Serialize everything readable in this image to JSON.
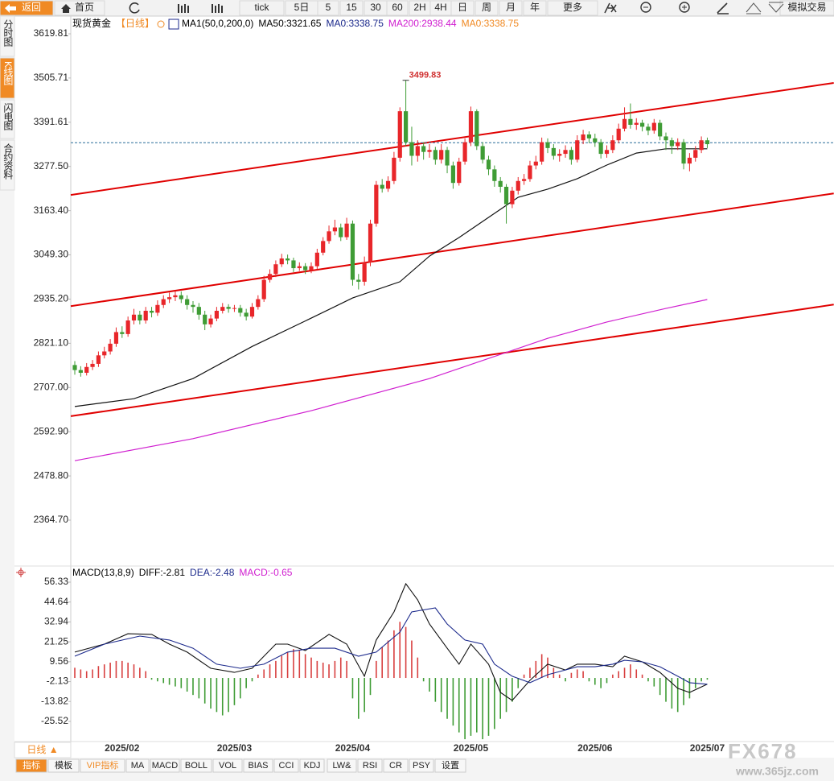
{
  "ui": {
    "toolbar": [
      "返回",
      "首页",
      "tick",
      "5日",
      "5",
      "15",
      "30",
      "60",
      "2H",
      "4H",
      "日",
      "周",
      "月",
      "年",
      "更多",
      "模拟交易"
    ],
    "side_tabs": [
      "分时图",
      "K线图",
      "闪电图",
      "合约资料"
    ],
    "period_button": "日线 ▲",
    "bottom_tabs": [
      "指标",
      "模板",
      "VIP指标",
      "MA",
      "MACD",
      "BOLL",
      "VOL",
      "BIAS",
      "CCI",
      "KDJ",
      "LW&",
      "RSI",
      "CR",
      "PSY",
      "设置"
    ],
    "watermark": [
      "FX678",
      "www.365jz.com"
    ]
  },
  "chart_data": {
    "type": "candlestick",
    "legend_items": [
      {
        "text": "现货黄金",
        "color": "#000000"
      },
      {
        "text": "【日线】",
        "color": "#f08a24"
      },
      {
        "text": "MA1(50,0,200,0)",
        "color": "#000000"
      },
      {
        "text": "MA50:3321.65",
        "color": "#000000"
      },
      {
        "text": "MA0:3338.75",
        "color": "#1c2a8c"
      },
      {
        "text": "MA200:2938.44",
        "color": "#d020d0"
      },
      {
        "text": "MA0:3338.75",
        "color": "#f08a24"
      }
    ],
    "categories": [
      null,
      null,
      null,
      null,
      null,
      null,
      null,
      null,
      "2025/02",
      null,
      null,
      null,
      null,
      null,
      null,
      null,
      null,
      null,
      null,
      null,
      null,
      null,
      null,
      null,
      null,
      null,
      null,
      "2025/03",
      null,
      null,
      null,
      null,
      null,
      null,
      null,
      null,
      null,
      null,
      null,
      null,
      null,
      null,
      null,
      null,
      null,
      null,
      null,
      "2025/04",
      null,
      null,
      null,
      null,
      null,
      null,
      null,
      null,
      null,
      null,
      null,
      null,
      null,
      null,
      null,
      null,
      null,
      null,
      null,
      "2025/05",
      null,
      null,
      null,
      null,
      null,
      null,
      null,
      null,
      null,
      null,
      null,
      null,
      null,
      null,
      null,
      null,
      null,
      null,
      null,
      null,
      "2025/06",
      null,
      null,
      null,
      null,
      null,
      null,
      null,
      null,
      null,
      null,
      null,
      null,
      null,
      null,
      null,
      null,
      null,
      null,
      "2025/07"
    ],
    "open": [
      2765,
      2752,
      2745,
      2760,
      2768,
      2790,
      2800,
      2820,
      2850,
      2845,
      2880,
      2895,
      2880,
      2905,
      2900,
      2920,
      2935,
      2940,
      2945,
      2935,
      2920,
      2915,
      2895,
      2870,
      2885,
      2905,
      2915,
      2910,
      2912,
      2900,
      2890,
      2915,
      2935,
      2985,
      3000,
      3025,
      3040,
      3035,
      3015,
      3020,
      3010,
      3020,
      3055,
      3085,
      3110,
      3120,
      3095,
      3130,
      2985,
      2980,
      3030,
      3130,
      3230,
      3220,
      3240,
      3300,
      3420,
      3340,
      3305,
      3330,
      3315,
      3320,
      3295,
      3320,
      3280,
      3235,
      3290,
      3340,
      3420,
      3330,
      3295,
      3270,
      3240,
      3225,
      3180,
      3215,
      3240,
      3245,
      3280,
      3290,
      3340,
      3325,
      3305,
      3310,
      3320,
      3295,
      3345,
      3360,
      3350,
      3340,
      3310,
      3320,
      3345,
      3375,
      3400,
      3385,
      3390,
      3380,
      3370,
      3390,
      3355,
      3345,
      3330,
      3340,
      3285,
      3300,
      3320,
      3345
    ],
    "high": [
      2775,
      2762,
      2770,
      2778,
      2800,
      2812,
      2832,
      2862,
      2865,
      2890,
      2910,
      2905,
      2915,
      2915,
      2932,
      2945,
      2952,
      2956,
      2955,
      2945,
      2930,
      2925,
      2905,
      2895,
      2915,
      2925,
      2922,
      2920,
      2920,
      2910,
      2925,
      2945,
      2995,
      3012,
      3035,
      3052,
      3050,
      3042,
      3030,
      3028,
      3030,
      3065,
      3095,
      3125,
      3140,
      3130,
      3145,
      3138,
      3000,
      3045,
      3140,
      3240,
      3245,
      3252,
      3315,
      3430,
      3499.83,
      3380,
      3345,
      3340,
      3335,
      3328,
      3335,
      3328,
      3290,
      3300,
      3350,
      3432,
      3425,
      3340,
      3305,
      3280,
      3250,
      3232,
      3225,
      3250,
      3258,
      3292,
      3305,
      3352,
      3350,
      3335,
      3322,
      3332,
      3328,
      3358,
      3372,
      3368,
      3362,
      3348,
      3332,
      3358,
      3388,
      3430,
      3440,
      3402,
      3398,
      3388,
      3400,
      3398,
      3365,
      3352,
      3350,
      3348,
      3312,
      3330,
      3355,
      3352
    ],
    "low": [
      2740,
      2735,
      2738,
      2752,
      2760,
      2782,
      2792,
      2812,
      2835,
      2838,
      2870,
      2870,
      2872,
      2888,
      2892,
      2912,
      2925,
      2930,
      2925,
      2908,
      2900,
      2882,
      2855,
      2862,
      2878,
      2898,
      2900,
      2902,
      2890,
      2880,
      2885,
      2908,
      2928,
      2978,
      2992,
      3018,
      3025,
      3005,
      3008,
      3000,
      3002,
      3012,
      3048,
      3078,
      3100,
      3085,
      3088,
      2970,
      2960,
      2970,
      3020,
      3122,
      3210,
      3212,
      3232,
      3290,
      3330,
      3280,
      3290,
      3295,
      3300,
      3282,
      3285,
      3260,
      3220,
      3228,
      3282,
      3330,
      3320,
      3285,
      3255,
      3225,
      3210,
      3130,
      3170,
      3205,
      3230,
      3238,
      3270,
      3282,
      3312,
      3295,
      3290,
      3300,
      3282,
      3288,
      3335,
      3338,
      3328,
      3298,
      3300,
      3312,
      3338,
      3368,
      3375,
      3372,
      3368,
      3358,
      3362,
      3345,
      3320,
      3310,
      3320,
      3270,
      3265,
      3290,
      3312,
      3325
    ],
    "close": [
      2752,
      2745,
      2760,
      2768,
      2790,
      2800,
      2820,
      2850,
      2845,
      2880,
      2895,
      2880,
      2905,
      2900,
      2920,
      2935,
      2940,
      2945,
      2935,
      2920,
      2915,
      2895,
      2870,
      2885,
      2905,
      2915,
      2910,
      2912,
      2900,
      2890,
      2915,
      2935,
      2985,
      3000,
      3025,
      3040,
      3035,
      3015,
      3020,
      3010,
      3020,
      3055,
      3085,
      3110,
      3120,
      3095,
      3130,
      2985,
      2980,
      3030,
      3130,
      3230,
      3220,
      3240,
      3300,
      3420,
      3340,
      3305,
      3330,
      3315,
      3320,
      3295,
      3320,
      3280,
      3235,
      3290,
      3340,
      3420,
      3330,
      3295,
      3270,
      3240,
      3225,
      3180,
      3215,
      3240,
      3245,
      3280,
      3290,
      3340,
      3325,
      3305,
      3310,
      3320,
      3295,
      3345,
      3360,
      3350,
      3340,
      3310,
      3320,
      3345,
      3375,
      3400,
      3385,
      3390,
      3380,
      3370,
      3390,
      3355,
      3345,
      3330,
      3340,
      3285,
      3300,
      3320,
      3345,
      3335
    ],
    "up_color": "#e8262a",
    "down_color": "#3f9c35",
    "ylim": [
      2252.5,
      3665.5
    ],
    "yticks": [
      3619.81,
      3505.71,
      3391.61,
      {
        "value": 3277.5,
        "label": "3277.50"
      },
      {
        "value": 3163.4,
        "label": "3163.40"
      },
      {
        "value": 3049.3,
        "label": "3049.30"
      },
      {
        "value": 2935.2,
        "label": "2935.20"
      },
      {
        "value": 2821.1,
        "label": "2821.10"
      },
      {
        "value": 2707,
        "label": "2707.00"
      },
      {
        "value": 2592.9,
        "label": "2592.90"
      },
      {
        "value": 2478.8,
        "label": "2478.80"
      },
      {
        "value": 2364.7,
        "label": "2364.70"
      }
    ],
    "last_price": 3338.75,
    "last_price_color": "#2a6f9a",
    "peak_color": "#d03030",
    "overlays": [
      {
        "color": "#111111",
        "x": [
          0,
          10,
          20,
          30,
          40,
          47,
          55,
          60,
          65,
          70,
          75,
          80,
          85,
          90,
          95,
          100,
          107
        ],
        "values": [
          2658,
          2678,
          2730,
          2813,
          2886,
          2938,
          2980,
          3046,
          3094,
          3146,
          3198,
          3219,
          3246,
          3281,
          3312,
          3323,
          3323
        ]
      },
      {
        "color": "#d020d0",
        "x": [
          0,
          20,
          40,
          60,
          80,
          90,
          100,
          107
        ],
        "values": [
          2518,
          2575,
          2647,
          2730,
          2834,
          2876,
          2911,
          2934
        ]
      }
    ],
    "trendlines": [
      {
        "color": "#e00000",
        "x": [
          -0.68,
          128.4
        ],
        "values": [
          3204,
          3493
        ]
      },
      {
        "color": "#e00000",
        "x": [
          -0.68,
          128.4
        ],
        "values": [
          2917,
          3208
        ]
      },
      {
        "color": "#e00000",
        "x": [
          -0.68,
          128.4
        ],
        "values": [
          2633,
          2921
        ]
      }
    ],
    "macd": {
      "legend_items": [
        {
          "text": "MACD(13,8,9)",
          "color": "#000000"
        },
        {
          "text": "DIFF:-2.81",
          "color": "#000000"
        },
        {
          "text": "DEA:-2.48",
          "color": "#1c2a8c"
        },
        {
          "text": "MACD:-0.65",
          "color": "#d020d0"
        }
      ],
      "ylim": [
        -36.9,
        64.85
      ],
      "yticks": [
        56.33,
        44.64,
        32.94,
        21.25,
        9.56,
        -2.13,
        -13.82,
        -25.52
      ],
      "hist": [
        6,
        5,
        4,
        5,
        7,
        8,
        9,
        10,
        10,
        9,
        8,
        6,
        4,
        -1,
        -2,
        -3,
        -4,
        -5,
        -6,
        -8,
        -10,
        -12,
        -15,
        -18,
        -20,
        -22,
        -20,
        -16,
        -12,
        -6,
        -2,
        2,
        5,
        8,
        10,
        13,
        15,
        17,
        16,
        14,
        12,
        10,
        9,
        8,
        10,
        12,
        10,
        -12,
        -24,
        -20,
        -10,
        10,
        18,
        22,
        28,
        33,
        30,
        22,
        12,
        -2,
        -8,
        -14,
        -20,
        -24,
        -28,
        -32,
        -36,
        -34,
        -32,
        -36,
        -34,
        -30,
        -24,
        -20,
        -14,
        -6,
        2,
        6,
        10,
        14,
        12,
        6,
        2,
        -2,
        3,
        5,
        4,
        -2,
        -4,
        -6,
        -3,
        2,
        4,
        6,
        8,
        5,
        2,
        -2,
        -5,
        -10,
        -14,
        -18,
        -20,
        -16,
        -12,
        -6,
        -2,
        -1
      ],
      "pos_color": "#d84040",
      "neg_color": "#3f9c35",
      "series": [
        {
          "name": "DIFF",
          "color": "#111111",
          "x": [
            0,
            5,
            9,
            13,
            16,
            19,
            23,
            27,
            30,
            34,
            36,
            39,
            43,
            46,
            49,
            51,
            54,
            56,
            58,
            60,
            63,
            65,
            67,
            70,
            72,
            74,
            77,
            80,
            83,
            85,
            88,
            91,
            93,
            96,
            99,
            102,
            104,
            107
          ],
          "values": [
            15.2,
            19.9,
            26.0,
            25.6,
            19.9,
            15.2,
            5.7,
            3.3,
            5.7,
            19.9,
            19.9,
            16.1,
            25.6,
            19.9,
            1.0,
            22.3,
            38.8,
            55.4,
            45.9,
            31.7,
            17.5,
            8.1,
            19.9,
            8.1,
            -8.5,
            -13.2,
            -1.4,
            8.1,
            4.7,
            8.1,
            8.1,
            6.6,
            12.8,
            9.5,
            3.3,
            -6.1,
            -8.5,
            -3.7
          ]
        },
        {
          "name": "DEA",
          "color": "#1c2a8c",
          "x": [
            0,
            5,
            11,
            16,
            20,
            24,
            28,
            32,
            36,
            40,
            44,
            48,
            51,
            55,
            57,
            61,
            63,
            66,
            69,
            71,
            74,
            77,
            80,
            83,
            85,
            88,
            91,
            93,
            96,
            99,
            102,
            104,
            107
          ],
          "values": [
            12.8,
            19.9,
            24.6,
            22.3,
            17.5,
            8.1,
            5.7,
            8.1,
            15.2,
            17.5,
            17.5,
            12.8,
            15.2,
            27.0,
            38.8,
            41.2,
            31.7,
            22.3,
            19.9,
            8.1,
            1.0,
            -2.8,
            1.9,
            4.7,
            6.6,
            6.6,
            8.1,
            10.4,
            9.5,
            6.6,
            1.0,
            -2.8,
            -3.7
          ]
        }
      ]
    }
  }
}
